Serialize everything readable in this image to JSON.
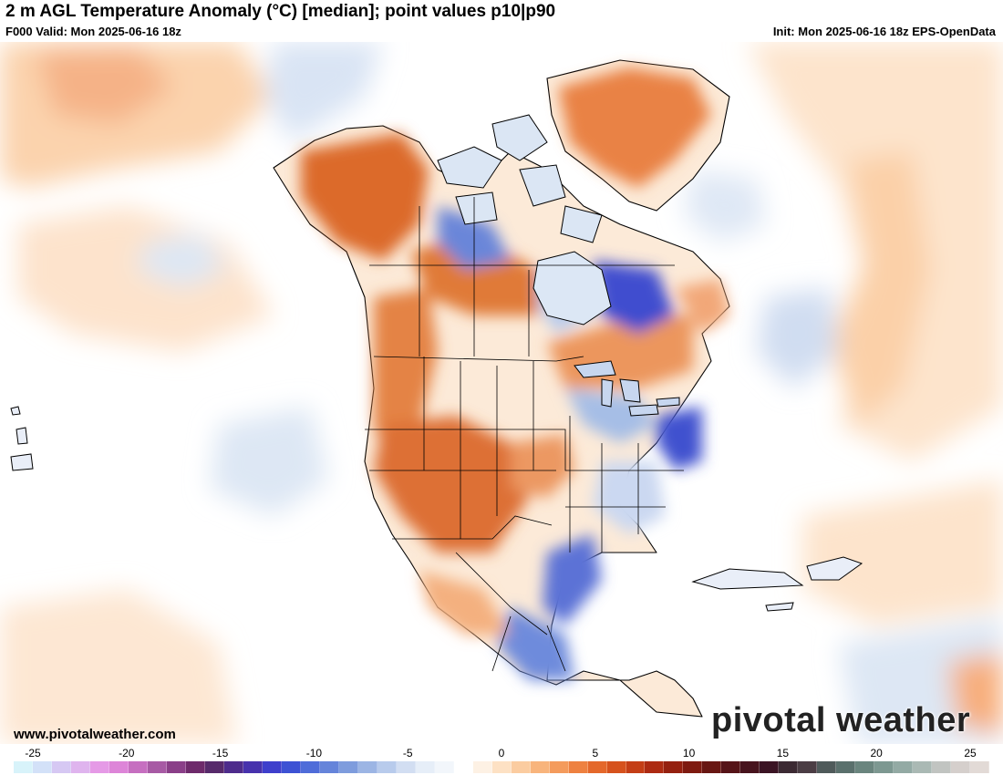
{
  "header": {
    "title": "2 m AGL Temperature Anomaly (°C) [median]; point values p10|p90",
    "valid": "F000 Valid: Mon 2025-06-16 18z",
    "init": "Init: Mon 2025-06-16 18z EPS-OpenData"
  },
  "footer": {
    "site_url": "www.pivotalweather.com",
    "brand": "pivotal weather"
  },
  "colorbar": {
    "ticks": [
      "-25",
      "-20",
      "-15",
      "-10",
      "-5",
      "0",
      "5",
      "10",
      "15",
      "20",
      "25"
    ],
    "colors": [
      "#d8f3fa",
      "#d3e1f8",
      "#d6c8f3",
      "#dfb4ee",
      "#e59ae6",
      "#dd85d8",
      "#c66fc0",
      "#a75aa4",
      "#8a3f88",
      "#6e2a6b",
      "#572a6b",
      "#4e2c8c",
      "#4732ad",
      "#3e3fcc",
      "#3d52d4",
      "#4f6cd9",
      "#6584da",
      "#7e9cdd",
      "#9cb5e4",
      "#b8cbec",
      "#d2def2",
      "#e6eef8",
      "#f2f6fb",
      "#ffffff",
      "#fdf1e4",
      "#fde1c4",
      "#fbcca0",
      "#f8b47c",
      "#f49b5c",
      "#ee8140",
      "#e4682b",
      "#d6521d",
      "#c43e16",
      "#ad2b12",
      "#95200f",
      "#7e1a10",
      "#681612",
      "#561418",
      "#47131d",
      "#3b1424",
      "#3c2a33",
      "#4b3d44",
      "#4f5a5a",
      "#5a706c",
      "#6a857e",
      "#7d9891",
      "#93aaa4",
      "#aab9b4",
      "#c1c4c1",
      "#d5cfcc",
      "#e2dad6"
    ]
  },
  "map": {
    "regions": [
      {
        "name": "greenland-anomaly",
        "anomaly_c": 5
      },
      {
        "name": "alaska-anomaly",
        "anomaly_c": 6
      },
      {
        "name": "hudson-bay-anomaly",
        "anomaly_c": -3
      },
      {
        "name": "quebec-anomaly",
        "anomaly_c": -7
      },
      {
        "name": "us-southwest-anomaly",
        "anomaly_c": 6
      },
      {
        "name": "mid-atlantic-anomaly",
        "anomaly_c": -6
      },
      {
        "name": "texas-coast-anomaly",
        "anomaly_c": -5
      },
      {
        "name": "mexico-anomaly",
        "anomaly_c": -4
      }
    ]
  }
}
